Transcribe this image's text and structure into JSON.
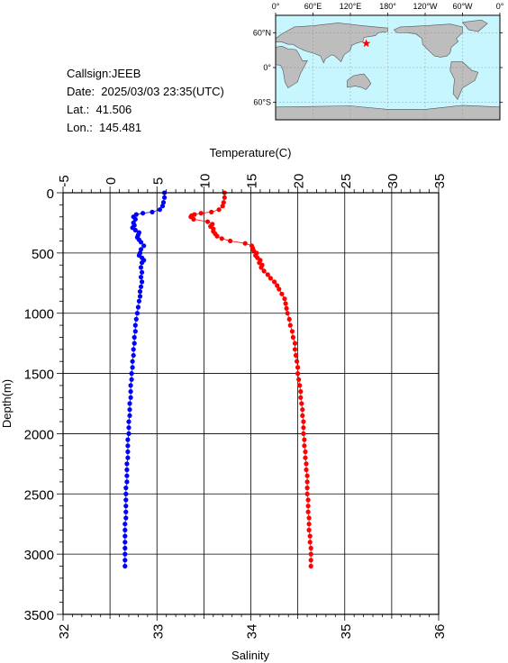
{
  "info": {
    "callsign": "Callsign:JEEB",
    "date": "Date:  2025/03/03 23:35(UTC)",
    "lat": "Lat.:  41.506",
    "lon": "Lon.:  145.481"
  },
  "map": {
    "lon_labels": [
      "0°",
      "60°E",
      "120°E",
      "180°",
      "120°W",
      "60°W",
      "0°"
    ],
    "lat_labels": [
      "60°N",
      "0°",
      "60°S"
    ],
    "station": {
      "lat": 41.506,
      "lon": 145.481
    },
    "colors": {
      "ocean": "#c8f6ff",
      "land": "#bdbdbd",
      "marker": "#ff0000"
    }
  },
  "chart_data": {
    "type": "scatter",
    "xlabel_top": "Temperature(C)",
    "xlabel_bottom": "Salinity",
    "ylabel": "Depth(m)",
    "temperature_ticks": [
      "-5",
      "0",
      "5",
      "10",
      "15",
      "20",
      "25",
      "30",
      "35"
    ],
    "salinity_ticks": [
      "32",
      "33",
      "34",
      "35",
      "36"
    ],
    "depth_ticks": [
      "0",
      "500",
      "1000",
      "1500",
      "2000",
      "2500",
      "3000",
      "3500"
    ],
    "xlim_temperature": [
      -5,
      35
    ],
    "xlim_salinity": [
      32,
      36
    ],
    "ylim_depth": [
      0,
      3500
    ],
    "grid": true,
    "series": [
      {
        "color": "#0000ff",
        "axis": "temperature",
        "points": [
          [
            5.8,
            0
          ],
          [
            5.8,
            40
          ],
          [
            5.7,
            80
          ],
          [
            5.6,
            110
          ],
          [
            5.3,
            140
          ],
          [
            4.5,
            160
          ],
          [
            3.5,
            170
          ],
          [
            2.8,
            180
          ],
          [
            2.5,
            200
          ],
          [
            2.7,
            220
          ],
          [
            2.5,
            250
          ],
          [
            2.6,
            270
          ],
          [
            2.4,
            290
          ],
          [
            2.7,
            310
          ],
          [
            3.1,
            330
          ],
          [
            3.0,
            350
          ],
          [
            2.9,
            370
          ],
          [
            3.1,
            390
          ],
          [
            3.3,
            410
          ],
          [
            3.6,
            440
          ],
          [
            3.3,
            470
          ],
          [
            3.2,
            500
          ],
          [
            3.1,
            520
          ],
          [
            3.4,
            540
          ],
          [
            3.6,
            560
          ],
          [
            3.4,
            580
          ],
          [
            3.3,
            620
          ],
          [
            3.4,
            660
          ],
          [
            3.3,
            700
          ],
          [
            3.4,
            740
          ],
          [
            3.3,
            780
          ],
          [
            3.2,
            820
          ],
          [
            3.2,
            860
          ],
          [
            3.1,
            900
          ],
          [
            3.0,
            950
          ],
          [
            2.9,
            1000
          ],
          [
            2.8,
            1050
          ],
          [
            2.7,
            1100
          ],
          [
            2.7,
            1150
          ],
          [
            2.6,
            1200
          ],
          [
            2.6,
            1250
          ],
          [
            2.5,
            1300
          ],
          [
            2.5,
            1350
          ],
          [
            2.4,
            1400
          ],
          [
            2.4,
            1450
          ],
          [
            2.3,
            1500
          ],
          [
            2.3,
            1550
          ],
          [
            2.2,
            1600
          ],
          [
            2.2,
            1650
          ],
          [
            2.2,
            1700
          ],
          [
            2.1,
            1750
          ],
          [
            2.1,
            1800
          ],
          [
            2.1,
            1850
          ],
          [
            2.0,
            1900
          ],
          [
            2.0,
            1950
          ],
          [
            2.0,
            2000
          ],
          [
            1.9,
            2050
          ],
          [
            1.9,
            2100
          ],
          [
            1.9,
            2150
          ],
          [
            1.9,
            2200
          ],
          [
            1.8,
            2250
          ],
          [
            1.8,
            2300
          ],
          [
            1.8,
            2350
          ],
          [
            1.8,
            2400
          ],
          [
            1.7,
            2450
          ],
          [
            1.7,
            2500
          ],
          [
            1.7,
            2550
          ],
          [
            1.7,
            2600
          ],
          [
            1.7,
            2650
          ],
          [
            1.7,
            2700
          ],
          [
            1.6,
            2750
          ],
          [
            1.6,
            2800
          ],
          [
            1.6,
            2850
          ],
          [
            1.6,
            2900
          ],
          [
            1.6,
            2950
          ],
          [
            1.6,
            3000
          ],
          [
            1.6,
            3050
          ],
          [
            1.6,
            3100
          ]
        ]
      },
      {
        "color": "#ff0000",
        "axis": "temperature",
        "points": [
          [
            12.2,
            0
          ],
          [
            12.2,
            40
          ],
          [
            12.1,
            80
          ],
          [
            12.0,
            110
          ],
          [
            11.6,
            140
          ],
          [
            10.8,
            160
          ],
          [
            9.7,
            170
          ],
          [
            9.0,
            180
          ],
          [
            8.7,
            190
          ],
          [
            8.6,
            200
          ],
          [
            8.9,
            220
          ],
          [
            10.4,
            240
          ],
          [
            10.9,
            260
          ],
          [
            10.7,
            280
          ],
          [
            11.0,
            300
          ],
          [
            11.0,
            320
          ],
          [
            11.2,
            340
          ],
          [
            11.4,
            360
          ],
          [
            11.9,
            380
          ],
          [
            12.8,
            400
          ],
          [
            14.4,
            420
          ],
          [
            15.1,
            440
          ],
          [
            15.2,
            460
          ],
          [
            15.3,
            480
          ],
          [
            15.6,
            500
          ],
          [
            15.5,
            520
          ],
          [
            15.7,
            540
          ],
          [
            16.0,
            560
          ],
          [
            15.9,
            580
          ],
          [
            16.2,
            600
          ],
          [
            16.1,
            620
          ],
          [
            16.4,
            650
          ],
          [
            16.8,
            680
          ],
          [
            17.1,
            710
          ],
          [
            17.5,
            740
          ],
          [
            17.8,
            770
          ],
          [
            18.0,
            800
          ],
          [
            18.3,
            840
          ],
          [
            18.6,
            880
          ],
          [
            18.7,
            920
          ],
          [
            18.8,
            960
          ],
          [
            18.9,
            1000
          ],
          [
            19.1,
            1050
          ],
          [
            19.2,
            1100
          ],
          [
            19.4,
            1150
          ],
          [
            19.5,
            1200
          ],
          [
            19.7,
            1250
          ],
          [
            19.7,
            1300
          ],
          [
            19.8,
            1350
          ],
          [
            19.9,
            1400
          ],
          [
            20.0,
            1450
          ],
          [
            20.0,
            1500
          ],
          [
            20.1,
            1550
          ],
          [
            20.2,
            1600
          ],
          [
            20.3,
            1650
          ],
          [
            20.3,
            1700
          ],
          [
            20.4,
            1750
          ],
          [
            20.5,
            1800
          ],
          [
            20.5,
            1850
          ],
          [
            20.6,
            1900
          ],
          [
            20.6,
            1950
          ],
          [
            20.6,
            2000
          ],
          [
            20.7,
            2050
          ],
          [
            20.7,
            2100
          ],
          [
            20.8,
            2150
          ],
          [
            20.8,
            2200
          ],
          [
            20.9,
            2250
          ],
          [
            20.9,
            2300
          ],
          [
            21.0,
            2350
          ],
          [
            21.0,
            2400
          ],
          [
            21.0,
            2450
          ],
          [
            21.0,
            2500
          ],
          [
            21.1,
            2550
          ],
          [
            21.1,
            2600
          ],
          [
            21.1,
            2650
          ],
          [
            21.2,
            2700
          ],
          [
            21.2,
            2750
          ],
          [
            21.2,
            2800
          ],
          [
            21.3,
            2850
          ],
          [
            21.3,
            2900
          ],
          [
            21.4,
            2950
          ],
          [
            21.4,
            3000
          ],
          [
            21.4,
            3050
          ],
          [
            21.4,
            3100
          ]
        ]
      }
    ]
  }
}
